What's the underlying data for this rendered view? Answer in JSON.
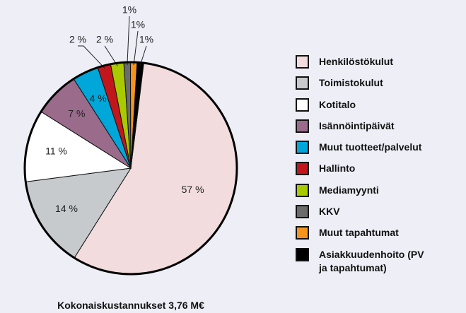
{
  "chart_data": {
    "type": "pie",
    "categories": [
      "Henkilöstökulut",
      "Toimistokulut",
      "Kotitalo",
      "Isännöintipäivät",
      "Muut tuotteet/palvelut",
      "Hallinto",
      "Mediamyynti",
      "KKV",
      "Muut tapahtumat",
      "Asiakkuudenhoito (PV ja tapahtumat)"
    ],
    "values": [
      57,
      14,
      11,
      7,
      4,
      2,
      2,
      1,
      1,
      1
    ],
    "value_labels": [
      "57 %",
      "14 %",
      "11 %",
      "7 %",
      "4 %",
      "2 %",
      "2 %",
      "1%",
      "1%",
      "1%"
    ],
    "colors": [
      "#f3dcdd",
      "#c6cacd",
      "#ffffff",
      "#9b6b8b",
      "#00a7d8",
      "#c2161d",
      "#a9c900",
      "#6b6b6b",
      "#f7941d",
      "#000000"
    ],
    "note": "Kokonaiskustannukset 3,76 M€",
    "legend": "right"
  }
}
